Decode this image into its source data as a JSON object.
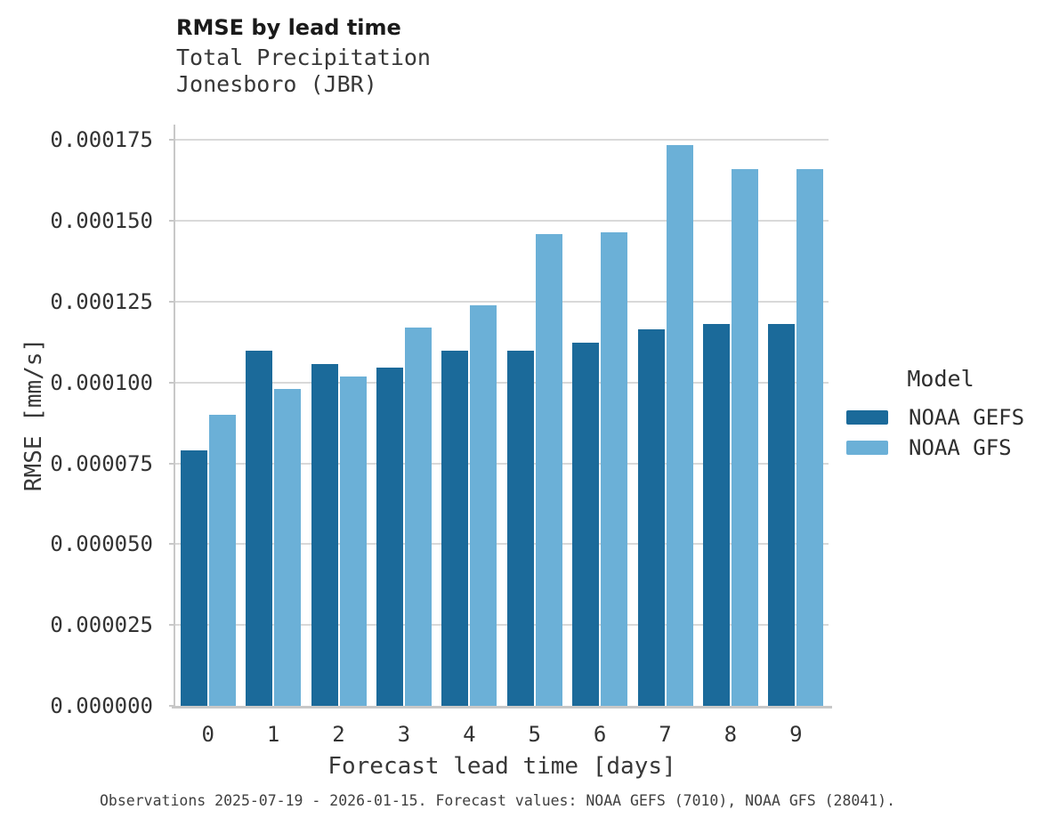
{
  "title": "RMSE by lead time",
  "subtitle_line1": "Total Precipitation",
  "subtitle_line2": "Jonesboro (JBR)",
  "caption": "Observations 2025-07-19 - 2026-01-15. Forecast values: NOAA GEFS (7010), NOAA GFS (28041).",
  "legend": {
    "title": "Model",
    "entries": [
      {
        "label": "NOAA GEFS",
        "color": "#1b6a9a"
      },
      {
        "label": "NOAA GFS",
        "color": "#6bb0d7"
      }
    ]
  },
  "colors": {
    "gefs_bar": "#1b6a9a",
    "gfs_bar": "#6bb0d7",
    "gridline": "#d9d9d9",
    "spine": "#c8c8c8"
  },
  "chart_data": {
    "type": "bar",
    "title": "RMSE by lead time",
    "subtitle": [
      "Total Precipitation",
      "Jonesboro (JBR)"
    ],
    "xlabel": "Forecast lead time [days]",
    "ylabel": "RMSE [mm/s]",
    "categories": [
      "0",
      "1",
      "2",
      "3",
      "4",
      "5",
      "6",
      "7",
      "8",
      "9"
    ],
    "series": [
      {
        "name": "NOAA GEFS",
        "color": "#1b6a9a",
        "values": [
          7.9e-05,
          0.0001098,
          0.0001056,
          0.0001046,
          0.0001098,
          0.0001098,
          0.0001124,
          0.0001164,
          0.000118,
          0.000118
        ]
      },
      {
        "name": "NOAA GFS",
        "color": "#6bb0d7",
        "values": [
          9e-05,
          9.8e-05,
          0.0001019,
          0.0001171,
          0.000124,
          0.0001458,
          0.0001464,
          0.0001736,
          0.000166,
          0.000166
        ]
      }
    ],
    "ylim": [
      0,
      0.0001798
    ],
    "ytick_values": [
      0,
      2.5e-05,
      5e-05,
      7.5e-05,
      0.0001,
      0.000125,
      0.00015,
      0.000175
    ],
    "ytick_labels": [
      "0.000000",
      "0.000025",
      "0.000050",
      "0.000075",
      "0.000100",
      "0.000125",
      "0.000150",
      "0.000175"
    ],
    "grid": true,
    "legend_position": "right"
  }
}
